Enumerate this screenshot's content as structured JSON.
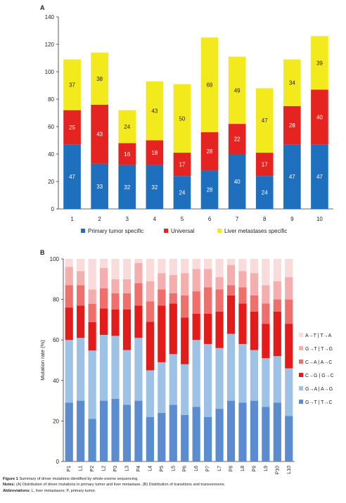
{
  "chart_data": [
    {
      "panel": "A",
      "type": "bar",
      "stacked": true,
      "categories": [
        "1",
        "2",
        "3",
        "4",
        "5",
        "6",
        "7",
        "8",
        "9",
        "10"
      ],
      "series": [
        {
          "name": "Primary tumor specific",
          "color": "#1f6fbf",
          "values": [
            47,
            33,
            32,
            32,
            24,
            28,
            40,
            24,
            47,
            47
          ]
        },
        {
          "name": "Universal",
          "color": "#e52421",
          "values": [
            25,
            43,
            16,
            18,
            17,
            28,
            22,
            17,
            28,
            40
          ]
        },
        {
          "name": "Liver metastases specific",
          "color": "#f2ea1d",
          "values": [
            37,
            38,
            24,
            43,
            50,
            69,
            49,
            47,
            34,
            39
          ]
        }
      ],
      "ylim": [
        0,
        140
      ],
      "yticks": [
        "0",
        "20",
        "40",
        "60",
        "80",
        "100",
        "120",
        "140"
      ],
      "legend": "bottom",
      "grid": false
    },
    {
      "panel": "B",
      "type": "bar",
      "stacked": true,
      "categories": [
        "P1",
        "L1",
        "P2",
        "L2",
        "P3",
        "L3",
        "P4",
        "L4",
        "P5",
        "L5",
        "P6",
        "L6",
        "P7",
        "L7",
        "P8",
        "L8",
        "P9",
        "L9",
        "P10",
        "L10"
      ],
      "ylabel": "Mutation rate (%)",
      "ylim": [
        0,
        100
      ],
      "yticks": [
        "0",
        "20",
        "40",
        "60",
        "80",
        "100"
      ],
      "series": [
        {
          "name": "G→T | T→C",
          "color": "#5b8ccf",
          "values": [
            29,
            30,
            21,
            30,
            31,
            28,
            30,
            22,
            24,
            28,
            23,
            27,
            22,
            26,
            30,
            29,
            30,
            27,
            29,
            22.5
          ]
        },
        {
          "name": "G→A | A→G",
          "color": "#9ec1e6",
          "values": [
            31,
            31,
            33.5,
            32.5,
            31,
            27,
            31,
            23,
            25,
            25,
            25,
            33,
            36,
            30,
            33,
            29,
            25,
            24,
            23,
            23.5
          ]
        },
        {
          "name": "C→G | G→C",
          "color": "#e31b1b",
          "values": [
            16,
            16,
            14,
            13,
            13,
            20,
            16,
            24,
            28,
            25,
            23,
            13,
            15,
            18,
            19,
            20,
            19,
            17,
            22,
            22
          ]
        },
        {
          "name": "C→A | A→C",
          "color": "#ef6f6c",
          "values": [
            11,
            10,
            9,
            10,
            8,
            8,
            11,
            10,
            8,
            5,
            11,
            11,
            13,
            11,
            5,
            8,
            8,
            10,
            6,
            12
          ]
        },
        {
          "name": "G→T | T→G",
          "color": "#f5aeae",
          "values": [
            9,
            7,
            7,
            10,
            7,
            7,
            10,
            10,
            8,
            9,
            11,
            11,
            9,
            6,
            10,
            8,
            11,
            9,
            9,
            11
          ]
        },
        {
          "name": "A→T | T→A",
          "color": "#fadbdb",
          "values": [
            4,
            6,
            15,
            4.5,
            10,
            10,
            2,
            11,
            7,
            8,
            7,
            5,
            5,
            9,
            3,
            6,
            7,
            13,
            11,
            9
          ]
        }
      ],
      "legend": "right",
      "grid": false
    }
  ],
  "panel_labels": {
    "a": "A",
    "b": "B"
  },
  "caption": {
    "figure_label": "Figure 1",
    "figure_text": "Summary of driver mutations identified by whole-exome sequencing.",
    "notes_label": "Notes:",
    "notes_text": "(A) Distribution of driver mutations in primary tumor and liver metastase. (B) Distribution of transitions and transversions.",
    "abbrev_label": "Abbreviations:",
    "abbrev_text": "L, liver metastases; P, primary tumor."
  }
}
